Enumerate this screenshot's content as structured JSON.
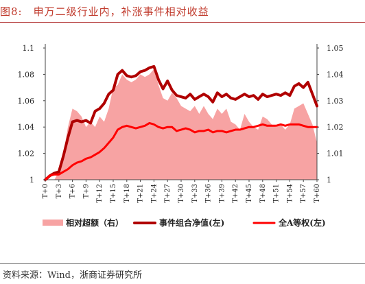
{
  "title": "图8:　申万二级行业内，补涨事件相对收益",
  "source": "资料来源：Wind，浙商证券研究所",
  "colors": {
    "title": "#c0392b",
    "area": "#f7a3a3",
    "net_value": "#b00000",
    "full_a": "#ff0000"
  },
  "chart_data": {
    "type": "line",
    "x": [
      "T+0",
      "T+1",
      "T+2",
      "T+3",
      "T+4",
      "T+5",
      "T+6",
      "T+7",
      "T+8",
      "T+9",
      "T+10",
      "T+11",
      "T+12",
      "T+13",
      "T+14",
      "T+15",
      "T+16",
      "T+17",
      "T+18",
      "T+19",
      "T+20",
      "T+21",
      "T+22",
      "T+23",
      "T+24",
      "T+25",
      "T+26",
      "T+27",
      "T+28",
      "T+29",
      "T+30",
      "T+31",
      "T+32",
      "T+33",
      "T+34",
      "T+35",
      "T+36",
      "T+37",
      "T+38",
      "T+39",
      "T+40",
      "T+41",
      "T+42",
      "T+43",
      "T+44",
      "T+45",
      "T+46",
      "T+47",
      "T+48",
      "T+49",
      "T+50",
      "T+51",
      "T+52",
      "T+53",
      "T+54",
      "T+55",
      "T+56",
      "T+57",
      "T+58",
      "T+59",
      "T+60"
    ],
    "x_tick_labels": [
      "T+0",
      "T+3",
      "T+6",
      "T+9",
      "T+12",
      "T+15",
      "T+18",
      "T+21",
      "T+24",
      "T+27",
      "T+30",
      "T+33",
      "T+36",
      "T+39",
      "T+42",
      "T+45",
      "T+48",
      "T+51",
      "T+54",
      "T+57",
      "T+60"
    ],
    "left_axis": {
      "ylim": [
        1,
        1.1
      ],
      "ticks": [
        1,
        1.02,
        1.04,
        1.06,
        1.08,
        1.1
      ],
      "tick_labels": [
        "1",
        "1.02",
        "1.04",
        "1.06",
        "1.08",
        "1.1"
      ]
    },
    "right_axis": {
      "ylim": [
        1,
        1.05
      ],
      "ticks": [
        1,
        1.01,
        1.02,
        1.03,
        1.04,
        1.05
      ],
      "tick_labels": [
        "1",
        "1.01",
        "1.02",
        "1.03",
        "1.04",
        "1.05"
      ]
    },
    "series": [
      {
        "name": "相对超额（右）",
        "type": "area",
        "axis": "right",
        "values": [
          1.0,
          1.0,
          1.0,
          1.003,
          1.01,
          1.02,
          1.027,
          1.026,
          1.024,
          1.02,
          1.022,
          1.02,
          1.024,
          1.022,
          1.027,
          1.035,
          1.036,
          1.04,
          1.038,
          1.037,
          1.038,
          1.04,
          1.039,
          1.04,
          1.042,
          1.036,
          1.031,
          1.03,
          1.033,
          1.031,
          1.028,
          1.027,
          1.026,
          1.028,
          1.025,
          1.028,
          1.025,
          1.023,
          1.027,
          1.025,
          1.027,
          1.022,
          1.021,
          1.019,
          1.025,
          1.022,
          1.02,
          1.019,
          1.024,
          1.023,
          1.021,
          1.02,
          1.021,
          1.019,
          1.021,
          1.027,
          1.028,
          1.029,
          1.025,
          1.021,
          1.014
        ]
      },
      {
        "name": "事件组合净值(左)",
        "type": "line",
        "axis": "left",
        "values": [
          1.0,
          1.003,
          1.005,
          1.006,
          1.018,
          1.032,
          1.044,
          1.045,
          1.044,
          1.045,
          1.043,
          1.052,
          1.054,
          1.058,
          1.065,
          1.068,
          1.08,
          1.083,
          1.079,
          1.078,
          1.079,
          1.082,
          1.083,
          1.085,
          1.086,
          1.076,
          1.069,
          1.075,
          1.068,
          1.064,
          1.063,
          1.062,
          1.065,
          1.061,
          1.063,
          1.065,
          1.063,
          1.059,
          1.066,
          1.063,
          1.065,
          1.062,
          1.061,
          1.063,
          1.065,
          1.063,
          1.064,
          1.061,
          1.065,
          1.063,
          1.064,
          1.065,
          1.064,
          1.066,
          1.064,
          1.071,
          1.073,
          1.07,
          1.074,
          1.065,
          1.056
        ]
      },
      {
        "name": "全A等权(左)",
        "type": "line",
        "axis": "left",
        "values": [
          1.0,
          1.003,
          1.004,
          1.004,
          1.006,
          1.008,
          1.011,
          1.013,
          1.014,
          1.016,
          1.017,
          1.019,
          1.021,
          1.024,
          1.028,
          1.032,
          1.038,
          1.04,
          1.041,
          1.04,
          1.039,
          1.04,
          1.041,
          1.043,
          1.042,
          1.04,
          1.039,
          1.04,
          1.04,
          1.037,
          1.038,
          1.039,
          1.038,
          1.036,
          1.037,
          1.037,
          1.038,
          1.036,
          1.037,
          1.037,
          1.036,
          1.037,
          1.038,
          1.038,
          1.039,
          1.04,
          1.04,
          1.041,
          1.042,
          1.041,
          1.041,
          1.041,
          1.042,
          1.041,
          1.042,
          1.042,
          1.042,
          1.041,
          1.04,
          1.04,
          1.04
        ]
      }
    ],
    "legend": {
      "placement": "bottom",
      "items": [
        "相对超额（右）",
        "事件组合净值(左)",
        "全A等权(左)"
      ]
    }
  }
}
